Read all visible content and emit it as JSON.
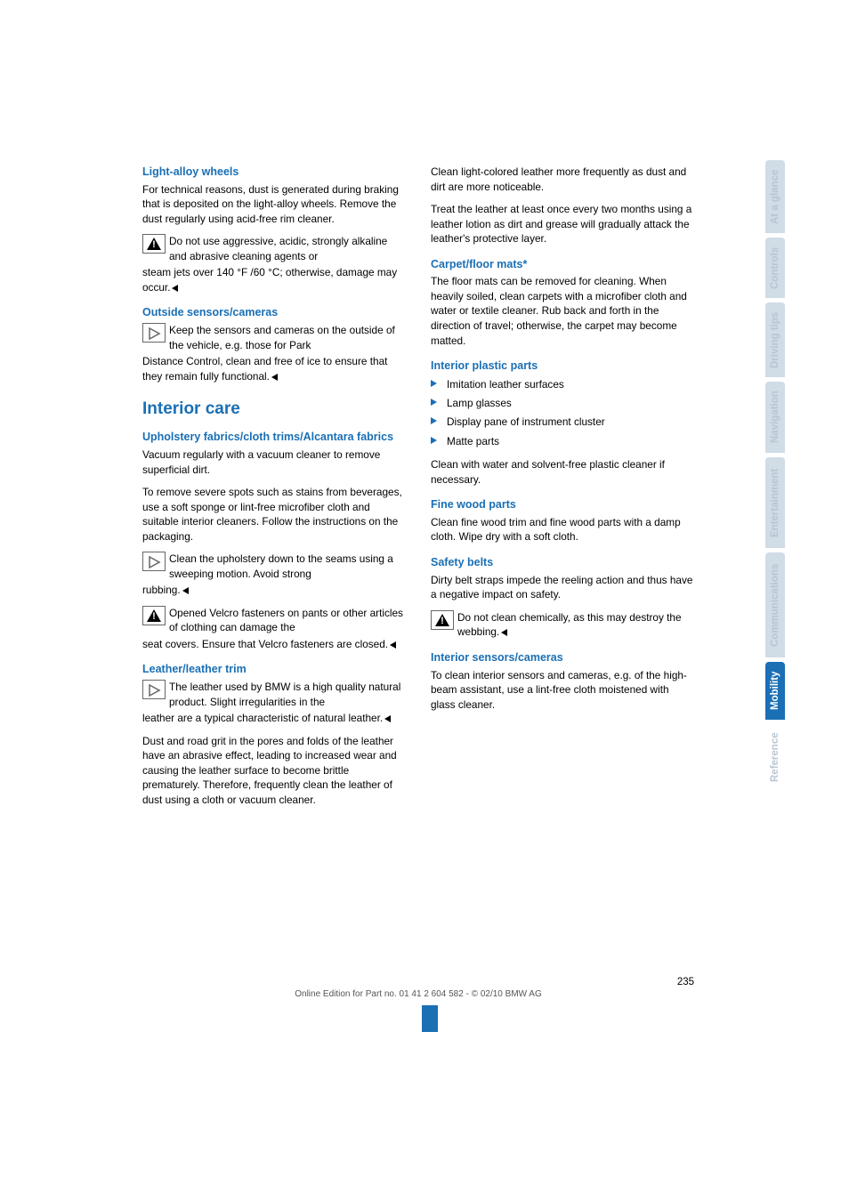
{
  "left": {
    "s1": {
      "title": "Light-alloy wheels",
      "p1": "For technical reasons, dust is generated during braking that is deposited on the light-alloy wheels. Remove the dust regularly using acid-free rim cleaner.",
      "warn_a": "Do not use aggressive, acidic, strongly alkaline and abrasive cleaning agents or",
      "warn_b": "steam jets over 140 °F /60 °C; otherwise, damage may occur."
    },
    "s2": {
      "title": "Outside sensors/cameras",
      "note_a": "Keep the sensors and cameras on the outside of the vehicle, e.g. those for Park",
      "note_b": "Distance Control, clean and free of ice to ensure that they remain fully functional."
    },
    "h2": "Interior care",
    "s3": {
      "title": "Upholstery fabrics/cloth trims/Alcantara fabrics",
      "p1": "Vacuum regularly with a vacuum cleaner to remove superficial dirt.",
      "p2": "To remove severe spots such as stains from beverages, use a soft sponge or lint-free microfiber cloth and suitable interior cleaners. Follow the instructions on the packaging.",
      "note_a": "Clean the upholstery down to the seams using a sweeping motion. Avoid strong",
      "note_b": "rubbing.",
      "warn_a": "Opened Velcro fasteners on pants or other articles of clothing can damage the",
      "warn_b": "seat covers. Ensure that Velcro fasteners are closed."
    },
    "s4": {
      "title": "Leather/leather trim",
      "note_a": "The leather used by BMW is a high quality natural product. Slight irregularities in the",
      "note_b": "leather are a typical characteristic of natural leather.",
      "p1": "Dust and road grit in the pores and folds of the leather have an abrasive effect, leading to increased wear and causing the leather surface to become brittle prematurely. Therefore, frequently clean the leather of dust using a cloth or vacuum cleaner."
    }
  },
  "right": {
    "p0a": "Clean light-colored leather more frequently as dust and dirt are more noticeable.",
    "p0b": "Treat the leather at least once every two months using a leather lotion as dirt and grease will gradually attack the leather's protective layer.",
    "s1": {
      "title": "Carpet/floor mats*",
      "p1": "The floor mats can be removed for cleaning. When heavily soiled, clean carpets with a microfiber cloth and water or textile cleaner. Rub back and forth in the direction of travel; otherwise, the carpet may become matted."
    },
    "s2": {
      "title": "Interior plastic parts",
      "items": [
        "Imitation leather surfaces",
        "Lamp glasses",
        "Display pane of instrument cluster",
        "Matte parts"
      ],
      "p1": "Clean with water and solvent-free plastic cleaner if necessary."
    },
    "s3": {
      "title": "Fine wood parts",
      "p1": "Clean fine wood trim and fine wood parts with a damp cloth. Wipe dry with a soft cloth."
    },
    "s4": {
      "title": "Safety belts",
      "p1": "Dirty belt straps impede the reeling action and thus have a negative impact on safety.",
      "warn_a": "Do not clean chemically, as this may destroy the webbing."
    },
    "s5": {
      "title": "Interior sensors/cameras",
      "p1": "To clean interior sensors and cameras, e.g. of the high-beam assistant, use a lint-free cloth moistened with glass cleaner."
    }
  },
  "tabs": {
    "t1": "At a glance",
    "t2": "Controls",
    "t3": "Driving tips",
    "t4": "Navigation",
    "t5": "Entertainment",
    "t6": "Communications",
    "t7": "Mobility",
    "t8": "Reference"
  },
  "tabs_style": {
    "h1": 82,
    "h2": 68,
    "h3": 84,
    "h4": 80,
    "h5": 102,
    "h6": 118,
    "h7": 65,
    "h8": 74,
    "inactive_bg": "#d0dce6",
    "inactive_fg": "#b8c6d4",
    "active_bg": "#1a6fb5",
    "active_fg": "#ffffff"
  },
  "footer": {
    "pagenum": "235",
    "line2": "Online Edition for Part no. 01 41 2 604 582 - © 02/10 BMW AG"
  },
  "colors": {
    "heading": "#1a6fb5",
    "text": "#000000",
    "bg": "#ffffff"
  }
}
